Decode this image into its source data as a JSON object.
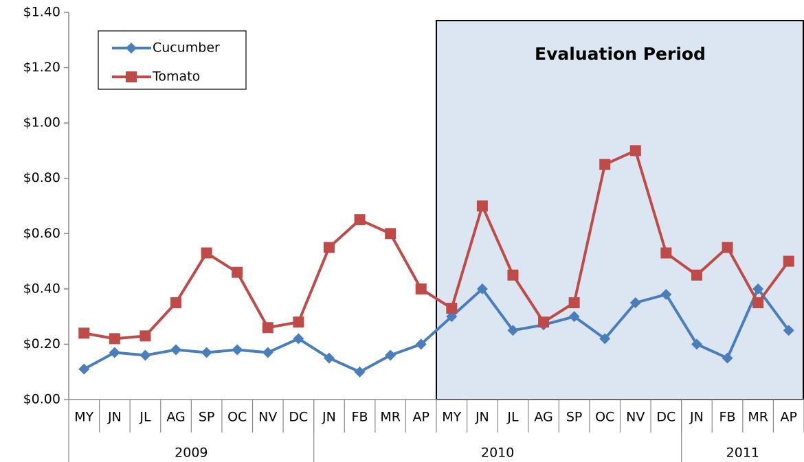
{
  "chart_data": {
    "type": "line",
    "annotation": "Evaluation Period",
    "categories": [
      "MY",
      "JN",
      "JL",
      "AG",
      "SP",
      "OC",
      "NV",
      "DC",
      "JN",
      "FB",
      "MR",
      "AP",
      "MY",
      "JN",
      "JL",
      "AG",
      "SP",
      "OC",
      "NV",
      "DC",
      "JN",
      "FB",
      "MR",
      "AP"
    ],
    "category_groups": [
      {
        "label": "2009",
        "span": 8
      },
      {
        "label": "2010",
        "span": 12
      },
      {
        "label": "2011",
        "span": 4
      }
    ],
    "series": [
      {
        "name": "Cucumber",
        "color": "#4a7ebb",
        "marker": "diamond",
        "values": [
          0.11,
          0.17,
          0.16,
          0.18,
          0.17,
          0.18,
          0.17,
          0.22,
          0.15,
          0.1,
          0.16,
          0.2,
          0.3,
          0.4,
          0.25,
          0.27,
          0.3,
          0.22,
          0.35,
          0.38,
          0.2,
          0.15,
          0.4,
          0.25
        ]
      },
      {
        "name": "Tomato",
        "color": "#be4b48",
        "marker": "square",
        "values": [
          0.24,
          0.22,
          0.23,
          0.35,
          0.53,
          0.46,
          0.26,
          0.28,
          0.55,
          0.65,
          0.6,
          0.4,
          0.33,
          0.7,
          0.45,
          0.28,
          0.35,
          0.85,
          0.9,
          0.53,
          0.45,
          0.55,
          0.35,
          0.5
        ]
      }
    ],
    "ylim": [
      0,
      1.4
    ],
    "yticks": [
      {
        "value": 0,
        "label": "$0.00"
      },
      {
        "value": 0.2,
        "label": "$0.20"
      },
      {
        "value": 0.4,
        "label": "$0.40"
      },
      {
        "value": 0.6,
        "label": "$0.60"
      },
      {
        "value": 0.8,
        "label": "$0.80"
      },
      {
        "value": 1.0,
        "label": "$1.00"
      },
      {
        "value": 1.2,
        "label": "$1.20"
      },
      {
        "value": 1.4,
        "label": "$1.40"
      }
    ],
    "grid": false,
    "legend": "top-left"
  }
}
